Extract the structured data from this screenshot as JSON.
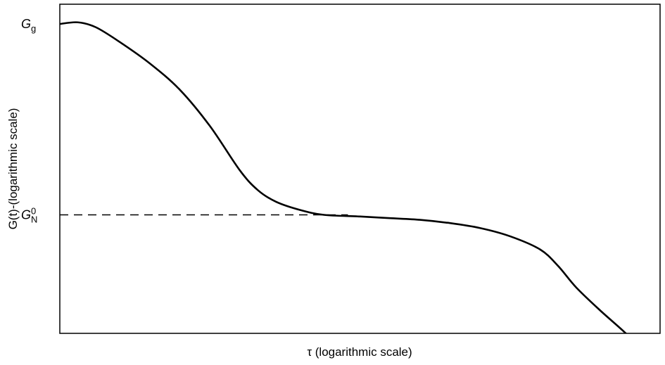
{
  "chart_data": {
    "type": "line",
    "xlabel": "τ (logarithmic scale)",
    "ylabel": "G(t)-(logarithmic scale)",
    "x_scale": "log",
    "y_scale": "log",
    "grid": false,
    "y_ticks": [
      {
        "main": "G",
        "sub": "g",
        "sup": "",
        "y": 0.94
      },
      {
        "main": "G",
        "sub": "N",
        "sup": "0",
        "y": 0.36
      }
    ],
    "series": [
      {
        "style": "solid",
        "x": [
          0.0,
          0.03,
          0.06,
          0.1,
          0.15,
          0.2,
          0.25,
          0.3,
          0.33,
          0.36,
          0.4,
          0.44,
          0.5,
          0.55,
          0.6,
          0.65,
          0.7,
          0.75,
          0.8,
          0.83,
          0.86,
          0.9,
          0.94,
          0.97
        ],
        "y": [
          0.94,
          0.945,
          0.93,
          0.885,
          0.82,
          0.74,
          0.63,
          0.495,
          0.435,
          0.4,
          0.375,
          0.36,
          0.355,
          0.35,
          0.345,
          0.335,
          0.32,
          0.295,
          0.255,
          0.205,
          0.14,
          0.07,
          0.005,
          -0.05
        ]
      },
      {
        "style": "dashed",
        "x": [
          0.0,
          0.48
        ],
        "y": [
          0.36,
          0.36
        ]
      }
    ],
    "xlim": [
      0,
      1
    ],
    "ylim": [
      0,
      1
    ]
  }
}
